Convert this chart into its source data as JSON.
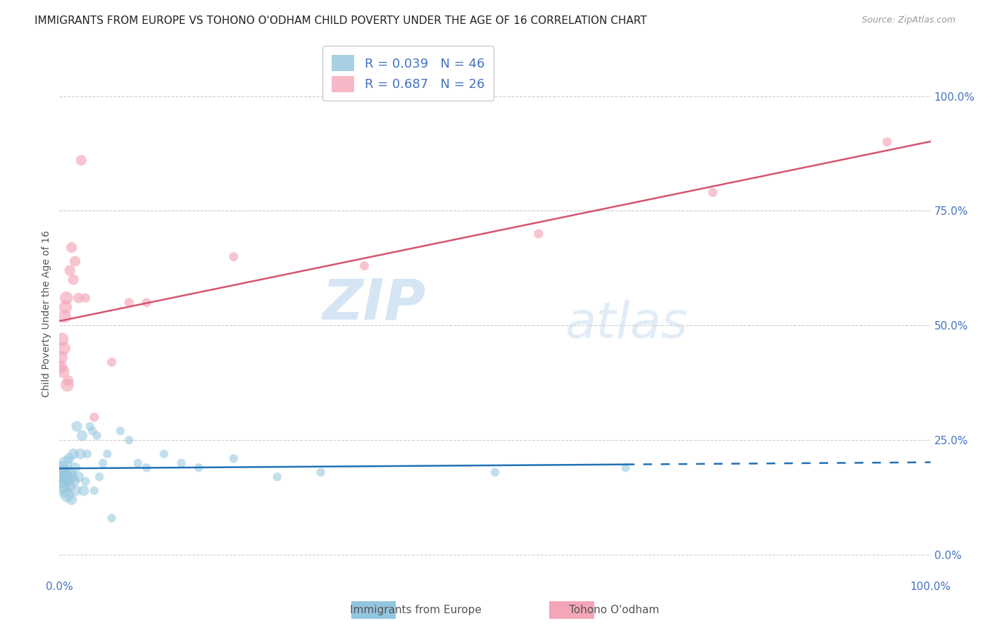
{
  "title": "IMMIGRANTS FROM EUROPE VS TOHONO O'ODHAM CHILD POVERTY UNDER THE AGE OF 16 CORRELATION CHART",
  "source": "Source: ZipAtlas.com",
  "ylabel": "Child Poverty Under the Age of 16",
  "legend1_label": "Immigrants from Europe",
  "legend2_label": "Tohono O'odham",
  "R1": 0.039,
  "N1": 46,
  "R2": 0.687,
  "N2": 26,
  "color_blue": "#92c5de",
  "color_pink": "#f4a6b8",
  "line_blue": "#2171b5",
  "line_pink": "#d6546e",
  "watermark_zip": "ZIP",
  "watermark_atlas": "atlas",
  "blue_x": [
    0.001,
    0.002,
    0.003,
    0.004,
    0.005,
    0.006,
    0.007,
    0.008,
    0.009,
    0.01,
    0.011,
    0.012,
    0.013,
    0.014,
    0.015,
    0.016,
    0.017,
    0.018,
    0.019,
    0.02,
    0.022,
    0.024,
    0.026,
    0.028,
    0.03,
    0.032,
    0.035,
    0.038,
    0.04,
    0.043,
    0.046,
    0.05,
    0.055,
    0.06,
    0.07,
    0.08,
    0.09,
    0.1,
    0.12,
    0.14,
    0.16,
    0.2,
    0.25,
    0.3,
    0.5,
    0.65
  ],
  "blue_y": [
    0.17,
    0.16,
    0.19,
    0.15,
    0.18,
    0.14,
    0.2,
    0.17,
    0.13,
    0.16,
    0.21,
    0.15,
    0.18,
    0.12,
    0.17,
    0.22,
    0.16,
    0.19,
    0.14,
    0.28,
    0.17,
    0.22,
    0.26,
    0.14,
    0.16,
    0.22,
    0.28,
    0.27,
    0.14,
    0.26,
    0.17,
    0.2,
    0.22,
    0.08,
    0.27,
    0.25,
    0.2,
    0.19,
    0.22,
    0.2,
    0.19,
    0.21,
    0.17,
    0.18,
    0.18,
    0.19
  ],
  "pink_x": [
    0.001,
    0.002,
    0.003,
    0.004,
    0.005,
    0.006,
    0.007,
    0.008,
    0.009,
    0.01,
    0.012,
    0.014,
    0.016,
    0.018,
    0.022,
    0.025,
    0.03,
    0.04,
    0.06,
    0.08,
    0.1,
    0.2,
    0.35,
    0.55,
    0.75,
    0.95
  ],
  "pink_y": [
    0.41,
    0.43,
    0.47,
    0.4,
    0.45,
    0.52,
    0.54,
    0.56,
    0.37,
    0.38,
    0.62,
    0.67,
    0.6,
    0.64,
    0.56,
    0.86,
    0.56,
    0.3,
    0.42,
    0.55,
    0.55,
    0.65,
    0.63,
    0.7,
    0.79,
    0.9
  ],
  "xlim": [
    0.0,
    1.0
  ],
  "ylim": [
    -0.05,
    1.1
  ],
  "yticks": [
    0.0,
    0.25,
    0.5,
    0.75,
    1.0
  ],
  "ytick_labels": [
    "0.0%",
    "25.0%",
    "50.0%",
    "75.0%",
    "100.0%"
  ],
  "xtick_labels": [
    "0.0%",
    "100.0%"
  ],
  "grid_color": "#cccccc",
  "background_color": "#ffffff",
  "title_fontsize": 11,
  "tick_color": "#4472c4",
  "marker_size_large": 180,
  "marker_size_small": 80
}
